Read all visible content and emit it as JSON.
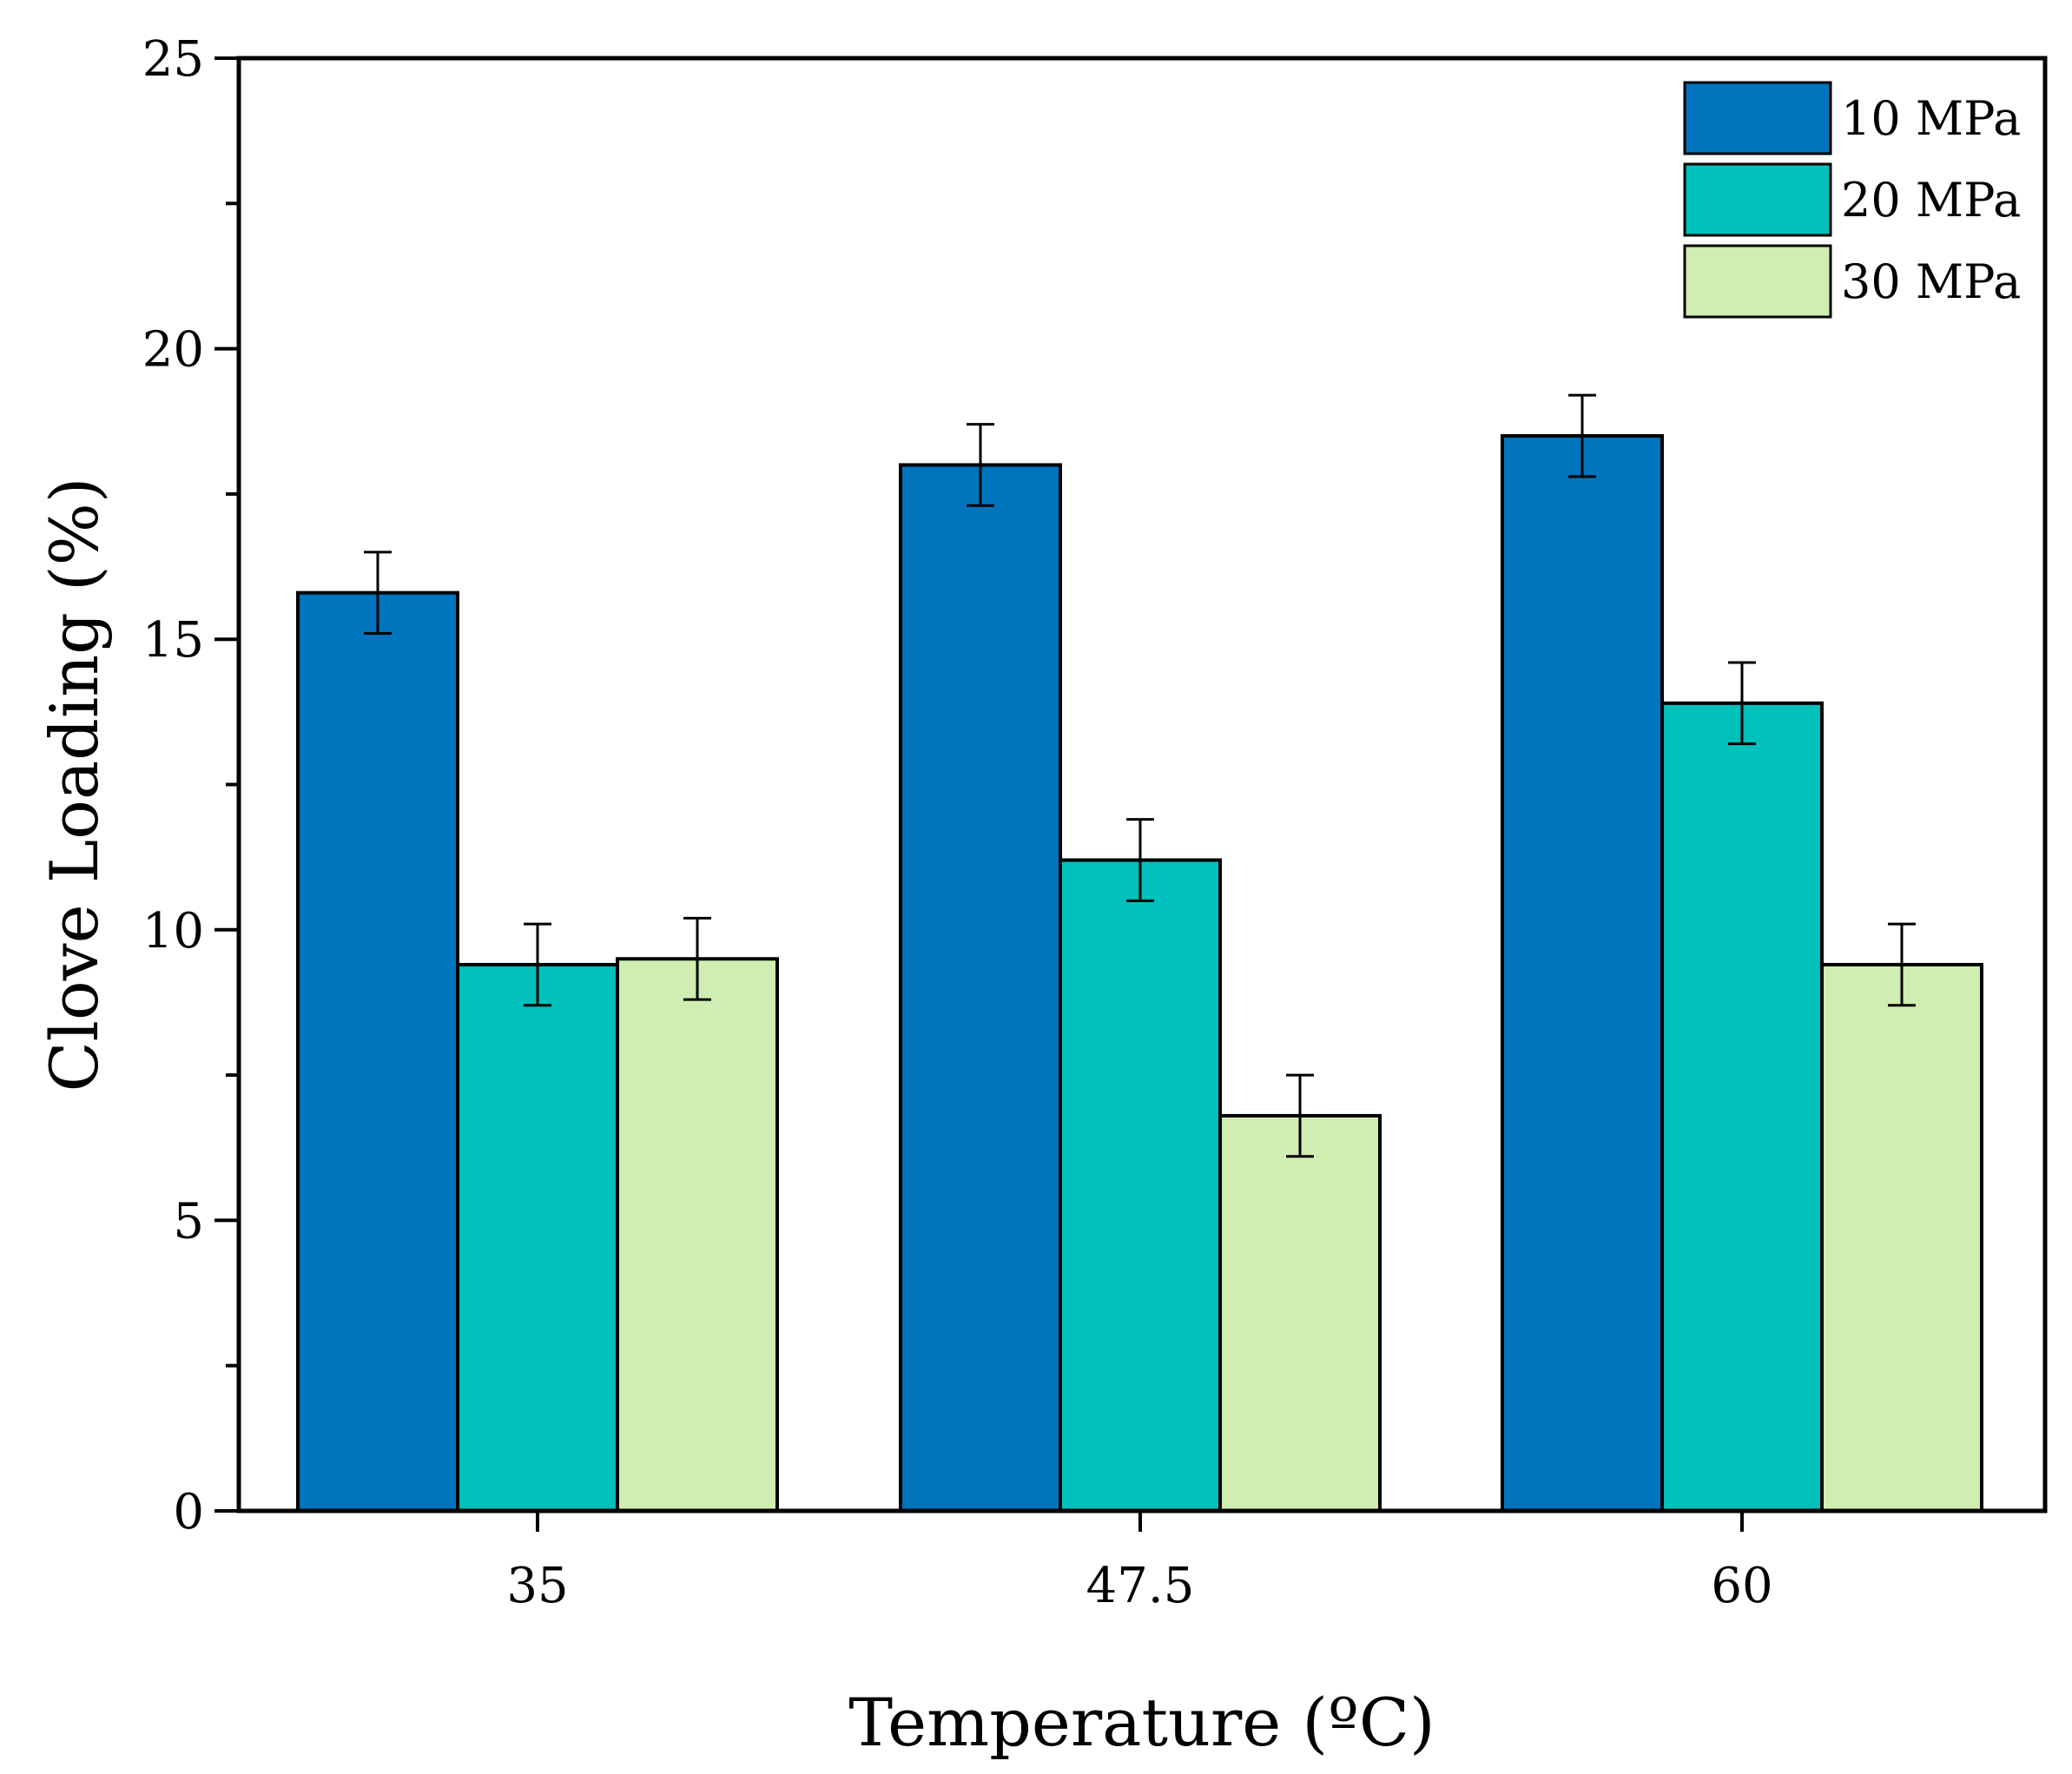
{
  "chart_data": {
    "type": "bar",
    "title": "",
    "xlabel": "Temperature (ºC)",
    "ylabel": "Clove Loading (%)",
    "categories": [
      "35",
      "47.5",
      "60"
    ],
    "ylim": [
      0,
      25
    ],
    "yticks": [
      0,
      5,
      10,
      15,
      20,
      25
    ],
    "y_minor_step": 2.5,
    "grid": false,
    "legend_position": "top-right",
    "series": [
      {
        "name": "10 MPa",
        "color": "#0074BD",
        "values": [
          15.8,
          18.0,
          18.5
        ],
        "errors": [
          0.7,
          0.7,
          0.7
        ]
      },
      {
        "name": "20 MPa",
        "color": "#00C0BC",
        "values": [
          9.4,
          11.2,
          13.9
        ],
        "errors": [
          0.7,
          0.7,
          0.7
        ]
      },
      {
        "name": "30 MPa",
        "color": "#D0EDB2",
        "values": [
          9.5,
          6.8,
          9.4
        ],
        "errors": [
          0.7,
          0.7,
          0.7
        ]
      }
    ]
  }
}
